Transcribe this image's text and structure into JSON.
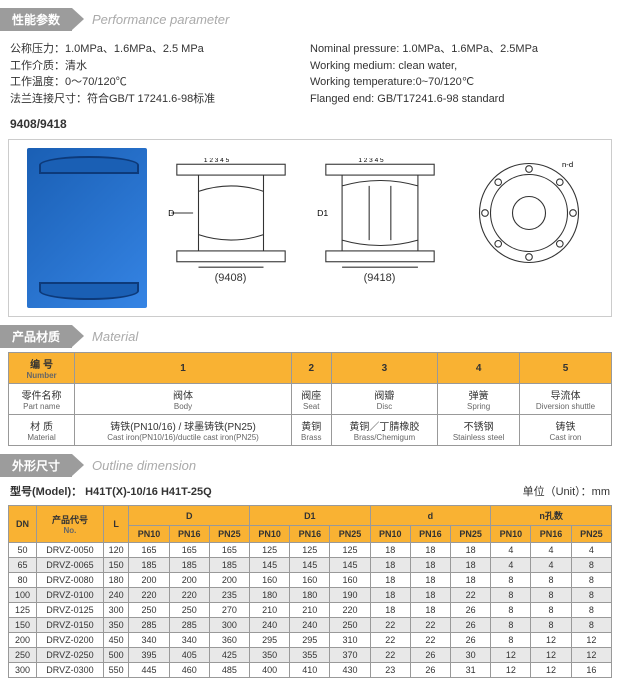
{
  "sections": {
    "perf": {
      "cn": "性能参数",
      "en": "Performance parameter"
    },
    "mat": {
      "cn": "产品材质",
      "en": "Material"
    },
    "dim": {
      "cn": "外形尺寸",
      "en": "Outline dimension"
    }
  },
  "params": {
    "l1": "公称压力：1.0MPa、1.6MPa、2.5 MPa",
    "l2": "工作介质：清水",
    "l3": "工作温度：0～70/120℃",
    "l4": "法兰连接尺寸：符合GB/T 17241.6-98标准",
    "r1": "Nominal pressure: 1.0MPa、1.6MPa、2.5MPa",
    "r2": "Working medium: clean water,",
    "r3": "Working temperature:0~70/120℃",
    "r4": "Flanged end: GB/T17241.6-98 standard"
  },
  "model": "9408/9418",
  "dlabels": {
    "a": "(9408)",
    "b": "(9418)"
  },
  "mat": {
    "h_num": "编 号",
    "h_num_en": "Number",
    "h_part": "零件名称",
    "h_part_en": "Part name",
    "h_mat": "材 质",
    "h_mat_en": "Material",
    "c1": "1",
    "c2": "2",
    "c3": "3",
    "c4": "4",
    "c5": "5",
    "p1": "阀体",
    "p1e": "Body",
    "p2": "阀座",
    "p2e": "Seat",
    "p3": "阀瓣",
    "p3e": "Disc",
    "p4": "弹簧",
    "p4e": "Spring",
    "p5": "导流体",
    "p5e": "Diversion shuttle",
    "m1": "铸铁(PN10/16) / 球墨铸铁(PN25)",
    "m1e": "Cast iron(PN10/16)/ductile cast iron(PN25)",
    "m2": "黄铜",
    "m2e": "Brass",
    "m3": "黄铜／丁腈橡胶",
    "m3e": "Brass/Chemigum",
    "m4": "不锈钢",
    "m4e": "Stainless steel",
    "m5": "铸铁",
    "m5e": "Cast iron"
  },
  "dim": {
    "model_label": "型号(Model)：",
    "models": "H41T(X)-10/16    H41T-25Q",
    "unit": "单位（Unit）：mm",
    "h_dn": "DN",
    "h_no": "产品代号",
    "h_no_en": "No.",
    "h_L": "L",
    "h_D": "D",
    "h_D1": "D1",
    "h_d": "d",
    "h_n": "n孔数",
    "pn10": "PN10",
    "pn16": "PN16",
    "pn25": "PN25",
    "rows": [
      {
        "dn": "50",
        "no": "DRVZ-0050",
        "L": "120",
        "D": [
          "165",
          "165",
          "165"
        ],
        "D1": [
          "125",
          "125",
          "125"
        ],
        "d": [
          "18",
          "18",
          "18"
        ],
        "n": [
          "4",
          "4",
          "4"
        ]
      },
      {
        "dn": "65",
        "no": "DRVZ-0065",
        "L": "150",
        "D": [
          "185",
          "185",
          "185"
        ],
        "D1": [
          "145",
          "145",
          "145"
        ],
        "d": [
          "18",
          "18",
          "18"
        ],
        "n": [
          "4",
          "4",
          "8"
        ]
      },
      {
        "dn": "80",
        "no": "DRVZ-0080",
        "L": "180",
        "D": [
          "200",
          "200",
          "200"
        ],
        "D1": [
          "160",
          "160",
          "160"
        ],
        "d": [
          "18",
          "18",
          "18"
        ],
        "n": [
          "8",
          "8",
          "8"
        ]
      },
      {
        "dn": "100",
        "no": "DRVZ-0100",
        "L": "240",
        "D": [
          "220",
          "220",
          "235"
        ],
        "D1": [
          "180",
          "180",
          "190"
        ],
        "d": [
          "18",
          "18",
          "22"
        ],
        "n": [
          "8",
          "8",
          "8"
        ]
      },
      {
        "dn": "125",
        "no": "DRVZ-0125",
        "L": "300",
        "D": [
          "250",
          "250",
          "270"
        ],
        "D1": [
          "210",
          "210",
          "220"
        ],
        "d": [
          "18",
          "18",
          "26"
        ],
        "n": [
          "8",
          "8",
          "8"
        ]
      },
      {
        "dn": "150",
        "no": "DRVZ-0150",
        "L": "350",
        "D": [
          "285",
          "285",
          "300"
        ],
        "D1": [
          "240",
          "240",
          "250"
        ],
        "d": [
          "22",
          "22",
          "26"
        ],
        "n": [
          "8",
          "8",
          "8"
        ]
      },
      {
        "dn": "200",
        "no": "DRVZ-0200",
        "L": "450",
        "D": [
          "340",
          "340",
          "360"
        ],
        "D1": [
          "295",
          "295",
          "310"
        ],
        "d": [
          "22",
          "22",
          "26"
        ],
        "n": [
          "8",
          "12",
          "12"
        ]
      },
      {
        "dn": "250",
        "no": "DRVZ-0250",
        "L": "500",
        "D": [
          "395",
          "405",
          "425"
        ],
        "D1": [
          "350",
          "355",
          "370"
        ],
        "d": [
          "22",
          "26",
          "30"
        ],
        "n": [
          "12",
          "12",
          "12"
        ]
      },
      {
        "dn": "300",
        "no": "DRVZ-0300",
        "L": "550",
        "D": [
          "445",
          "460",
          "485"
        ],
        "D1": [
          "400",
          "410",
          "430"
        ],
        "d": [
          "23",
          "26",
          "31"
        ],
        "n": [
          "12",
          "12",
          "16"
        ]
      }
    ]
  }
}
